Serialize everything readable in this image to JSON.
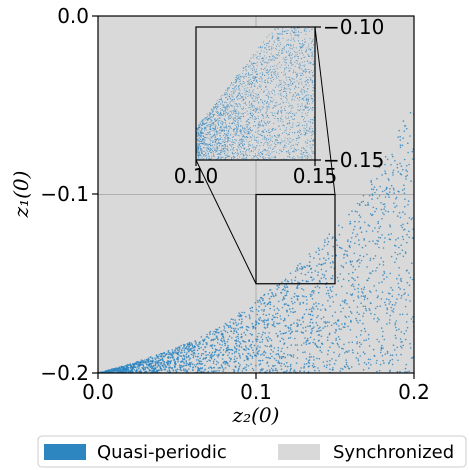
{
  "chart_data": {
    "type": "scatter",
    "xlabel": "z₂(0)",
    "ylabel": "z₁(0)",
    "xlim": [
      0.0,
      0.2
    ],
    "ylim": [
      -0.2,
      0.0
    ],
    "x_ticks": [
      "0.0",
      "0.1",
      "0.2"
    ],
    "y_ticks": [
      "0.0",
      "−0.1",
      "−0.2"
    ],
    "grid": true,
    "background_class": "Synchronized",
    "point_class": "Quasi-periodic",
    "boundary_polyline": [
      [
        0.0,
        -0.2
      ],
      [
        0.02,
        -0.195
      ],
      [
        0.04,
        -0.189
      ],
      [
        0.06,
        -0.182
      ],
      [
        0.08,
        -0.172
      ],
      [
        0.1,
        -0.16
      ],
      [
        0.12,
        -0.145
      ],
      [
        0.14,
        -0.128
      ],
      [
        0.16,
        -0.11
      ],
      [
        0.18,
        -0.082
      ],
      [
        0.2,
        -0.045
      ]
    ],
    "inset": {
      "xlim": [
        0.1,
        0.15
      ],
      "ylim": [
        -0.15,
        -0.1
      ],
      "x_ticks": [
        "0.10",
        "0.15"
      ],
      "y_ticks": [
        "−0.10",
        "−0.15"
      ]
    },
    "legend": {
      "placement": "bottom",
      "entries": [
        {
          "label": "Quasi-periodic",
          "color": "#2e86c1"
        },
        {
          "label": "Synchronized",
          "color": "#d9d9d9"
        }
      ]
    },
    "colors": {
      "background": "#d9d9d9",
      "points": "#2e86c1",
      "grid": "#b0b0b0"
    }
  }
}
